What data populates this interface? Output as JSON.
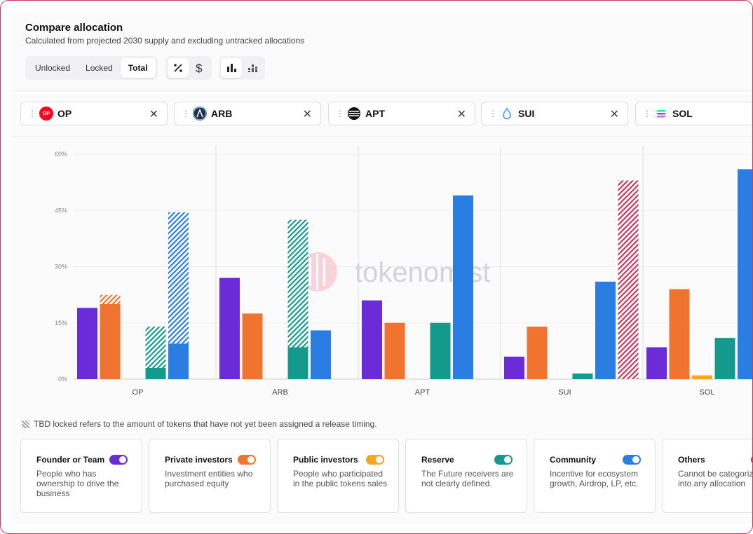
{
  "header": {
    "title": "Compare allocation",
    "subtitle": "Calculated from projected 2030 supply and excluding untracked allocations"
  },
  "toolbar": {
    "modes": [
      "Unlocked",
      "Locked",
      "Total"
    ],
    "active_mode": "Total",
    "unit_icons": [
      "percent-icon",
      "dollar-icon"
    ],
    "chart_icons": [
      "grouped-bar-icon",
      "stacked-bar-icon"
    ]
  },
  "tokens": [
    {
      "symbol": "OP",
      "color": "#ff0420",
      "logo_text": "OP"
    },
    {
      "symbol": "ARB",
      "color": "#213147",
      "logo_text": ""
    },
    {
      "symbol": "APT",
      "color": "#111111",
      "logo_text": ""
    },
    {
      "symbol": "SUI",
      "color": "#4da2ff",
      "logo_text": ""
    },
    {
      "symbol": "SOL",
      "color": "#9945ff",
      "logo_text": ""
    }
  ],
  "watermark": "tokenomist",
  "chart_data": {
    "type": "bar",
    "categories": [
      "OP",
      "ARB",
      "APT",
      "SUI",
      "SOL"
    ],
    "y_ticks": [
      "0%",
      "15%",
      "30%",
      "45%",
      "60%"
    ],
    "ylim": [
      0,
      60
    ],
    "grid": true,
    "series": [
      {
        "name": "Founder or Team",
        "color": "#6c2bd9",
        "values": [
          19,
          27,
          21,
          6,
          8.5
        ],
        "tbd": [
          0,
          0,
          0,
          0,
          0
        ]
      },
      {
        "name": "Private investors",
        "color": "#f07330",
        "values": [
          20,
          17.5,
          15,
          14,
          24
        ],
        "tbd": [
          2.5,
          0,
          0,
          0,
          0
        ]
      },
      {
        "name": "Public investors",
        "color": "#f5a623",
        "values": [
          0,
          0,
          0,
          0,
          1
        ],
        "tbd": [
          0,
          0,
          0,
          0,
          0
        ]
      },
      {
        "name": "Reserve",
        "color": "#149a8c",
        "values": [
          3,
          8.5,
          15,
          1.5,
          11
        ],
        "tbd": [
          11,
          34,
          0,
          0,
          0
        ]
      },
      {
        "name": "Community",
        "color": "#2a7de1",
        "values": [
          9.5,
          13,
          49,
          26,
          56
        ],
        "tbd": [
          35,
          0,
          0,
          0,
          0
        ]
      },
      {
        "name": "Others",
        "color": "#c7365f",
        "values": [
          0,
          0,
          0,
          0,
          0
        ],
        "tbd": [
          0,
          0,
          0,
          53,
          0
        ]
      }
    ]
  },
  "legend_note": "TBD locked refers to the amount of tokens that have not yet been assigned a release timing.",
  "categories_cards": [
    {
      "title": "Founder or Team",
      "desc": "People who has ownership to drive the business",
      "color": "#6c2bd9"
    },
    {
      "title": "Private investors",
      "desc": "Investment entities who purchased equity",
      "color": "#f07330"
    },
    {
      "title": "Public investors",
      "desc": "People who participated in the public tokens sales",
      "color": "#f5a623"
    },
    {
      "title": "Reserve",
      "desc": "The Future receivers are not clearly defined.",
      "color": "#149a8c"
    },
    {
      "title": "Community",
      "desc": "Incentive for ecosystem growth, Airdrop, LP, etc.",
      "color": "#2a7de1"
    },
    {
      "title": "Others",
      "desc": "Cannot be categorized into any allocation",
      "color": "#c7365f"
    }
  ]
}
